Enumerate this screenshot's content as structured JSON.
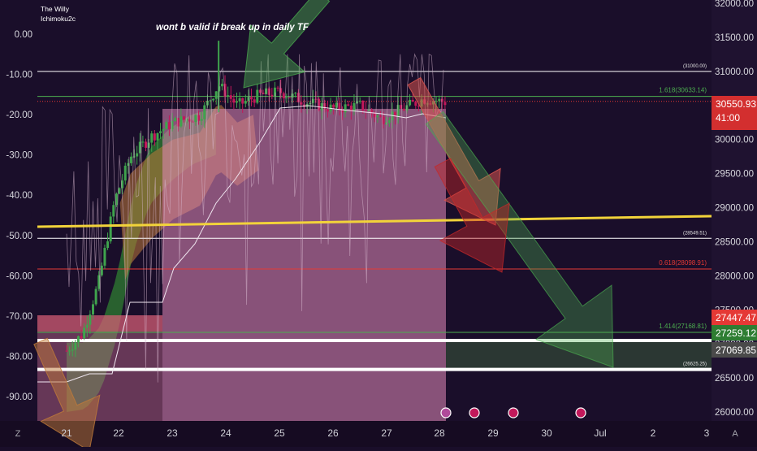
{
  "header": {
    "title": "The Willy",
    "indicator": "Ichimoku2c",
    "annotation": "wont b valid if break up in daily TF"
  },
  "colors": {
    "background": "#1a0e2a",
    "price_axis_bg": "#1f1230",
    "candle_up": "#3fa34d",
    "candle_down": "#c2185b",
    "cloud_green": "#2f7d32",
    "cloud_orange": "#c07a3a",
    "pink_zone": "#e48ab9",
    "trend_yellow": "#f2d33a",
    "fib_green": "#4caf50",
    "fib_red": "#e53935",
    "label_current": "#d32f2f",
    "label_red": "#e53935",
    "label_green": "#2e7d32",
    "label_gray": "#4a4a4a"
  },
  "chart_data": {
    "type": "candlestick",
    "x_ticks": [
      "21",
      "22",
      "23",
      "24",
      "25",
      "26",
      "27",
      "28",
      "29",
      "30",
      "Jul",
      "2",
      "3"
    ],
    "right_axis": {
      "ticks": [
        "32000.00",
        "31500.00",
        "31000.00",
        "30500.00",
        "30000.00",
        "29500.00",
        "29000.00",
        "28500.00",
        "28000.00",
        "27500.00",
        "27000.00",
        "26500.00",
        "26000.00"
      ],
      "range": [
        25950,
        32050
      ]
    },
    "left_axis": {
      "ticks": [
        "0.00",
        "-10.00",
        "-20.00",
        "-30.00",
        "-40.00",
        "-50.00",
        "-60.00",
        "-70.00",
        "-80.00",
        "-90.00"
      ],
      "range": [
        -98,
        5
      ]
    },
    "horizontal_levels": [
      {
        "label": "(31000.00)",
        "price": 31000,
        "color": "#ffffff",
        "width": 1
      },
      {
        "label": "1.618(30633.14)",
        "price": 30633.14,
        "color": "#4caf50",
        "width": 1
      },
      {
        "label": "(28549.51)",
        "price": 28549.51,
        "color": "#ffffff",
        "width": 1
      },
      {
        "label": "0.618(28098.91)",
        "price": 28098.91,
        "color": "#e53935",
        "width": 1
      },
      {
        "label": "1.414(27168.81)",
        "price": 27168.81,
        "color": "#4caf50",
        "width": 1
      },
      {
        "label": "",
        "price": 27050,
        "color": "#ffffff",
        "width": 4
      },
      {
        "label": "(26625.25)",
        "price": 26625.25,
        "color": "#ffffff",
        "width": 4
      }
    ],
    "price_labels": [
      {
        "value": "30550.93",
        "sub": "41:00",
        "color": "#d32f2f"
      },
      {
        "value": "27447.47",
        "color": "#e53935"
      },
      {
        "value": "27259.12",
        "color": "#2e7d32"
      },
      {
        "value": "27069.85",
        "color": "#4a4a4a"
      }
    ],
    "axis_buttons": [
      "Z",
      "A"
    ]
  }
}
